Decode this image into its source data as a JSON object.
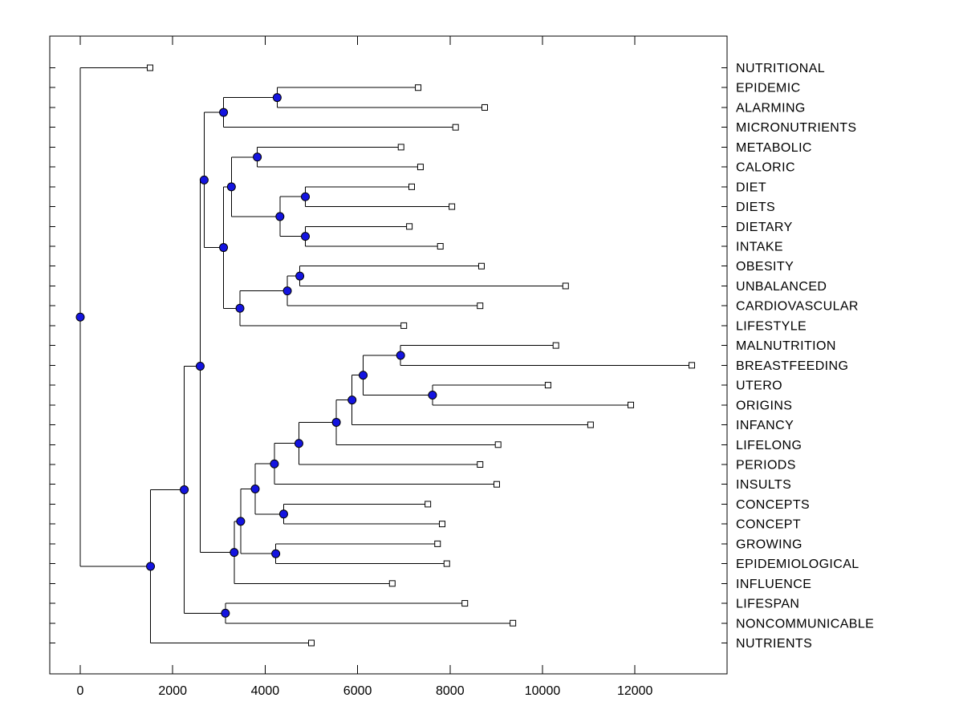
{
  "chart_data": {
    "type": "dendrogram",
    "orientation": "root-left-leaves-right",
    "title": "",
    "xlabel": "",
    "ylabel": "",
    "grid": false,
    "x_axis": {
      "tick_values": [
        0,
        2000,
        4000,
        6000,
        8000,
        10000,
        12000
      ],
      "tick_labels": [
        "0",
        "2000",
        "4000",
        "6000",
        "8000",
        "10000",
        "12000"
      ],
      "range": [
        -660,
        13990
      ]
    },
    "leaves": [
      {
        "label": "NUTRITIONAL",
        "value": 1510
      },
      {
        "label": "EPIDEMIC",
        "value": 7310
      },
      {
        "label": "ALARMING",
        "value": 8750
      },
      {
        "label": "MICRONUTRIENTS",
        "value": 8120
      },
      {
        "label": "METABOLIC",
        "value": 6940
      },
      {
        "label": "CALORIC",
        "value": 7360
      },
      {
        "label": "DIET",
        "value": 7170
      },
      {
        "label": "DIETS",
        "value": 8040
      },
      {
        "label": "DIETARY",
        "value": 7120
      },
      {
        "label": "INTAKE",
        "value": 7790
      },
      {
        "label": "OBESITY",
        "value": 8680
      },
      {
        "label": "UNBALANCED",
        "value": 10500
      },
      {
        "label": "CARDIOVASCULAR",
        "value": 8650
      },
      {
        "label": "LIFESTYLE",
        "value": 7000
      },
      {
        "label": "MALNUTRITION",
        "value": 10290
      },
      {
        "label": "BREASTFEEDING",
        "value": 13230
      },
      {
        "label": "UTERO",
        "value": 10120
      },
      {
        "label": "ORIGINS",
        "value": 11910
      },
      {
        "label": "INFANCY",
        "value": 11040
      },
      {
        "label": "LIFELONG",
        "value": 9040
      },
      {
        "label": "PERIODS",
        "value": 8650
      },
      {
        "label": "INSULTS",
        "value": 9010
      },
      {
        "label": "CONCEPTS",
        "value": 7520
      },
      {
        "label": "CONCEPT",
        "value": 7830
      },
      {
        "label": "GROWING",
        "value": 7730
      },
      {
        "label": "EPIDEMIOLOGICAL",
        "value": 7930
      },
      {
        "label": "INFLUENCE",
        "value": 6750
      },
      {
        "label": "LIFESPAN",
        "value": 8320
      },
      {
        "label": "NONCOMMUNICABLE",
        "value": 9360
      },
      {
        "label": "NUTRIENTS",
        "value": 5000
      }
    ],
    "tree": {
      "d": 0,
      "c": [
        {
          "leaf": 0
        },
        {
          "d": 1520,
          "c": [
            {
              "d": 2250,
              "c": [
                {
                  "d": 2595,
                  "c": [
                    {
                      "d": 2680,
                      "c": [
                        {
                          "d": 3100,
                          "c": [
                            {
                              "d": 4260,
                              "c": [
                                {
                                  "leaf": 1
                                },
                                {
                                  "leaf": 2
                                }
                              ]
                            },
                            {
                              "leaf": 3
                            }
                          ]
                        },
                        {
                          "d": 3100,
                          "c": [
                            {
                              "d": 3270,
                              "c": [
                                {
                                  "d": 3830,
                                  "c": [
                                    {
                                      "leaf": 4
                                    },
                                    {
                                      "leaf": 5
                                    }
                                  ]
                                },
                                {
                                  "d": 4320,
                                  "c": [
                                    {
                                      "d": 4870,
                                      "c": [
                                        {
                                          "leaf": 6
                                        },
                                        {
                                          "leaf": 7
                                        }
                                      ]
                                    },
                                    {
                                      "d": 4870,
                                      "c": [
                                        {
                                          "leaf": 8
                                        },
                                        {
                                          "leaf": 9
                                        }
                                      ]
                                    }
                                  ]
                                }
                              ]
                            },
                            {
                              "d": 3455,
                              "c": [
                                {
                                  "d": 4480,
                                  "c": [
                                    {
                                      "d": 4750,
                                      "c": [
                                        {
                                          "leaf": 10
                                        },
                                        {
                                          "leaf": 11
                                        }
                                      ]
                                    },
                                    {
                                      "leaf": 12
                                    }
                                  ]
                                },
                                {
                                  "leaf": 13
                                }
                              ]
                            }
                          ]
                        }
                      ]
                    },
                    {
                      "d": 3330,
                      "c": [
                        {
                          "d": 3470,
                          "c": [
                            {
                              "d": 3785,
                              "c": [
                                {
                                  "d": 4200,
                                  "c": [
                                    {
                                      "d": 4730,
                                      "c": [
                                        {
                                          "d": 5540,
                                          "c": [
                                            {
                                              "d": 5880,
                                              "c": [
                                                {
                                                  "d": 6120,
                                                  "c": [
                                                    {
                                                      "d": 6930,
                                                      "c": [
                                                        {
                                                          "leaf": 14
                                                        },
                                                        {
                                                          "leaf": 15
                                                        }
                                                      ]
                                                    },
                                                    {
                                                      "d": 7620,
                                                      "c": [
                                                        {
                                                          "leaf": 16
                                                        },
                                                        {
                                                          "leaf": 17
                                                        }
                                                      ]
                                                    }
                                                  ]
                                                },
                                                {
                                                  "leaf": 18
                                                }
                                              ]
                                            },
                                            {
                                              "leaf": 19
                                            }
                                          ]
                                        },
                                        {
                                          "leaf": 20
                                        }
                                      ]
                                    },
                                    {
                                      "leaf": 21
                                    }
                                  ]
                                },
                                {
                                  "d": 4400,
                                  "c": [
                                    {
                                      "leaf": 22
                                    },
                                    {
                                      "leaf": 23
                                    }
                                  ]
                                }
                              ]
                            },
                            {
                              "d": 4230,
                              "c": [
                                {
                                  "leaf": 24
                                },
                                {
                                  "leaf": 25
                                }
                              ]
                            }
                          ]
                        },
                        {
                          "leaf": 26
                        }
                      ]
                    }
                  ]
                },
                {
                  "d": 3140,
                  "c": [
                    {
                      "leaf": 27
                    },
                    {
                      "leaf": 28
                    }
                  ]
                }
              ]
            },
            {
              "leaf": 29
            }
          ]
        }
      ]
    },
    "style": {
      "background": "#ffffff",
      "branch_color": "#000000",
      "axis_color": "#000000",
      "node_marker_fill": "#1414e0",
      "node_marker_edge": "#000000",
      "leaf_marker_fill": "#ffffff",
      "leaf_marker_edge": "#000000"
    }
  }
}
